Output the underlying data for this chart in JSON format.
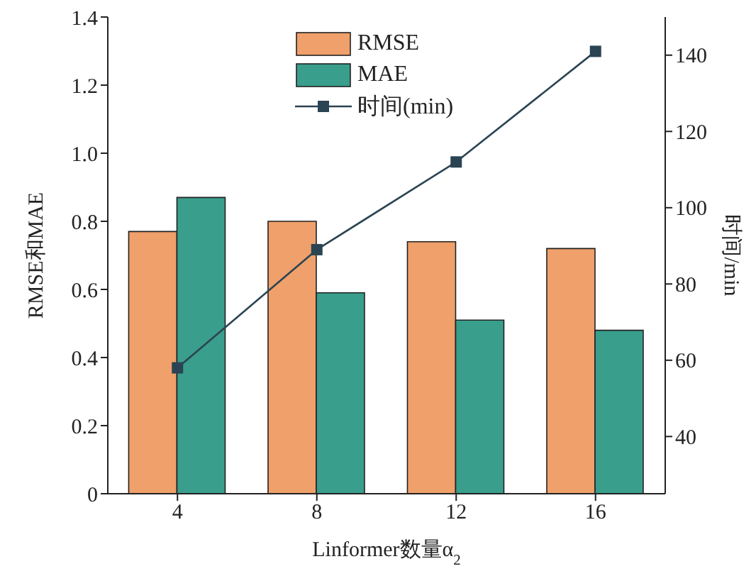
{
  "chart_data": {
    "type": "bar",
    "categories": [
      "4",
      "8",
      "12",
      "16"
    ],
    "xlabel": "Linformer数量α$_{2}$",
    "ylabel": "RMSE和MAE",
    "y2label": "时间/min",
    "series": [
      {
        "name": "RMSE",
        "color": "#f0a06a",
        "values": [
          0.77,
          0.8,
          0.74,
          0.72
        ]
      },
      {
        "name": "MAE",
        "color": "#3a9e8c",
        "values": [
          0.87,
          0.59,
          0.51,
          0.48
        ]
      },
      {
        "name": "时间(min)",
        "type": "line",
        "axis": "y2",
        "color": "#2b4453",
        "values": [
          58,
          89,
          112,
          141
        ]
      }
    ],
    "ylim": [
      0,
      1.4
    ],
    "yticks": [
      0,
      0.2,
      0.4,
      0.6,
      0.8,
      {
        "value": 1,
        "label": "1.0"
      },
      1.2,
      1.4
    ],
    "y2lim": [
      25,
      150
    ],
    "y2ticks": [
      40,
      60,
      80,
      100,
      120,
      140
    ],
    "marker": "square",
    "legend": "top"
  }
}
